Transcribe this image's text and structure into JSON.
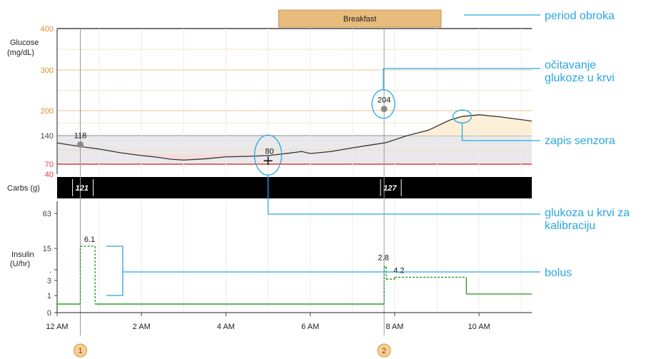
{
  "chart_data": {
    "type": "line",
    "x_axis": {
      "ticks": [
        "12 AM",
        "2 AM",
        "4 AM",
        "6 AM",
        "8 AM",
        "10 AM"
      ],
      "range_hours": [
        0,
        11.25
      ]
    },
    "meal_period": {
      "label": "Breakfast",
      "start_hour": 5.25,
      "end_hour": 9.1,
      "color": "#e8bc7c"
    },
    "glucose_panel": {
      "ylabel": "Glucose\n(mg/dL)",
      "ticks": [
        "400",
        "300",
        "200",
        "140",
        "70",
        "40"
      ],
      "ylim": [
        40,
        400
      ],
      "target_range": [
        70,
        140
      ],
      "high_threshold": 140,
      "low_threshold": 70,
      "sensor_series": [
        [
          0,
          122
        ],
        [
          0.5,
          114
        ],
        [
          1,
          107
        ],
        [
          1.5,
          98
        ],
        [
          2,
          91
        ],
        [
          2.3,
          88
        ],
        [
          2.7,
          82
        ],
        [
          3,
          80
        ],
        [
          3.5,
          83
        ],
        [
          4,
          88
        ],
        [
          4.5,
          89
        ],
        [
          5,
          91
        ],
        [
          5.5,
          97
        ],
        [
          5.8,
          101
        ],
        [
          6,
          96
        ],
        [
          6.5,
          101
        ],
        [
          7,
          110
        ],
        [
          7.5,
          118
        ],
        [
          7.8,
          123
        ],
        [
          8.3,
          140
        ],
        [
          8.8,
          153
        ],
        [
          9.3,
          177
        ],
        [
          9.6,
          186
        ],
        [
          10,
          190
        ],
        [
          10.5,
          185
        ],
        [
          11.25,
          175
        ]
      ],
      "bg_readings": [
        {
          "hour": 0.55,
          "value": 118,
          "label": "118"
        },
        {
          "hour": 7.75,
          "value": 204,
          "label": "204"
        }
      ],
      "calibration": {
        "hour": 5.0,
        "value": 80,
        "label": "80"
      }
    },
    "carbs_panel": {
      "label": "Carbs (g)",
      "entries": [
        {
          "hour": 0.45,
          "label": "121"
        },
        {
          "hour": 7.75,
          "label": "127"
        }
      ]
    },
    "insulin_panel": {
      "ylabel": "Insulin\n(U/hr)",
      "ticks": [
        "63",
        "15",
        ".",
        "3",
        "1",
        "0"
      ],
      "basal": [
        [
          0,
          0.5
        ],
        [
          0.55,
          0.5
        ],
        [
          0.55,
          18
        ],
        [
          0.9,
          18
        ],
        [
          0.9,
          0.5
        ],
        [
          7.75,
          0.5
        ],
        [
          7.75,
          8
        ],
        [
          7.8,
          8
        ],
        [
          7.8,
          3.5
        ],
        [
          8.0,
          3.5
        ],
        [
          8.0,
          4.2
        ],
        [
          9.7,
          4.2
        ],
        [
          9.7,
          1.2
        ],
        [
          11.25,
          1.2
        ]
      ],
      "bolus_labels": [
        {
          "hour": 0.6,
          "label": "6.1"
        },
        {
          "hour": 7.75,
          "label": "2.8"
        },
        {
          "hour": 8.0,
          "label": "4.2"
        }
      ]
    },
    "event_markers": [
      {
        "hour": 0.55,
        "label": "1"
      },
      {
        "hour": 7.75,
        "label": "2"
      }
    ],
    "annotations": [
      "period obroka",
      "očitavanje\nglukoze u krvi",
      "zapis senzora",
      "glukoza u krvi za\nkalibraciju",
      "bolus"
    ],
    "colors": {
      "accent": "#29a7e1",
      "orange": "#d9902a",
      "red": "#e23b3b",
      "green": "#2f9e2f",
      "target_band": "#e9e9eb",
      "high_fill": "#fbefd8",
      "low_fill": "#f7dcdc"
    }
  }
}
